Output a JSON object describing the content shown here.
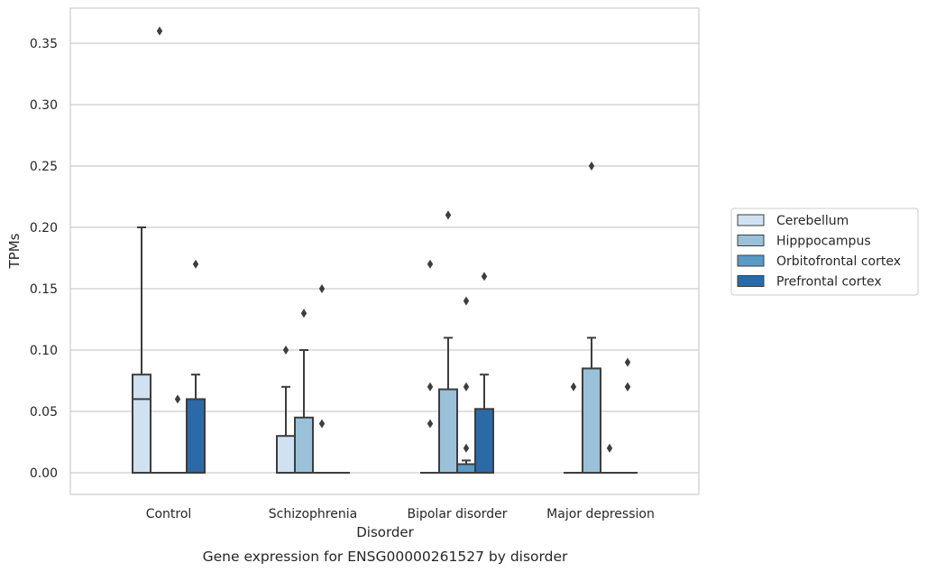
{
  "chart_data": {
    "type": "box",
    "xlabel": "Disorder",
    "ylabel": "TPMs",
    "caption": "Gene expression for ENSG00000261527 by disorder",
    "ylim": [
      -0.018,
      0.378
    ],
    "yticks": [
      "0.00",
      "0.05",
      "0.10",
      "0.15",
      "0.20",
      "0.25",
      "0.30",
      "0.35"
    ],
    "ytick_values": [
      0,
      0.05,
      0.1,
      0.15,
      0.2,
      0.25,
      0.3,
      0.35
    ],
    "grid": "horizontal",
    "legend_position": "right",
    "categories": [
      "Control",
      "Schizophrenia",
      "Bipolar disorder",
      "Major depression"
    ],
    "series": [
      {
        "name": "Cerebellum",
        "color": "#d0e1f2",
        "boxes": [
          {
            "q1": 0,
            "median": 0.06,
            "q3": 0.08,
            "whisker_low": 0,
            "whisker_high": 0.2,
            "outliers": []
          },
          {
            "q1": 0,
            "median": 0,
            "q3": 0.03,
            "whisker_low": 0,
            "whisker_high": 0.07,
            "outliers": [
              0.1
            ]
          },
          {
            "q1": 0,
            "median": 0,
            "q3": 0,
            "whisker_low": 0,
            "whisker_high": 0,
            "outliers": [
              0.04,
              0.07,
              0.17
            ]
          },
          {
            "q1": 0,
            "median": 0,
            "q3": 0,
            "whisker_low": 0,
            "whisker_high": 0,
            "outliers": [
              0.07
            ]
          }
        ]
      },
      {
        "name": "Hipppocampus",
        "color": "#9ac1d9",
        "boxes": [
          {
            "q1": 0,
            "median": 0,
            "q3": 0,
            "whisker_low": 0,
            "whisker_high": 0,
            "outliers": [
              0.36
            ]
          },
          {
            "q1": 0,
            "median": 0,
            "q3": 0.045,
            "whisker_low": 0,
            "whisker_high": 0.1,
            "outliers": [
              0.13
            ]
          },
          {
            "q1": 0,
            "median": 0,
            "q3": 0.068,
            "whisker_low": 0,
            "whisker_high": 0.11,
            "outliers": [
              0.21
            ]
          },
          {
            "q1": 0,
            "median": 0,
            "q3": 0.085,
            "whisker_low": 0,
            "whisker_high": 0.11,
            "outliers": [
              0.25
            ]
          }
        ]
      },
      {
        "name": "Orbitofrontal cortex",
        "color": "#5a9ac6",
        "boxes": [
          {
            "q1": 0,
            "median": 0,
            "q3": 0,
            "whisker_low": 0,
            "whisker_high": 0,
            "outliers": [
              0.06
            ]
          },
          {
            "q1": 0,
            "median": 0,
            "q3": 0,
            "whisker_low": 0,
            "whisker_high": 0,
            "outliers": [
              0.04,
              0.15
            ]
          },
          {
            "q1": 0,
            "median": 0,
            "q3": 0.007,
            "whisker_low": 0,
            "whisker_high": 0.01,
            "outliers": [
              0.02,
              0.07,
              0.14
            ]
          },
          {
            "q1": 0,
            "median": 0,
            "q3": 0,
            "whisker_low": 0,
            "whisker_high": 0,
            "outliers": [
              0.02
            ]
          }
        ]
      },
      {
        "name": "Prefrontal cortex",
        "color": "#2b6aa6",
        "boxes": [
          {
            "q1": 0,
            "median": 0,
            "q3": 0.06,
            "whisker_low": 0,
            "whisker_high": 0.08,
            "outliers": [
              0.17
            ]
          },
          {
            "q1": 0,
            "median": 0,
            "q3": 0,
            "whisker_low": 0,
            "whisker_high": 0,
            "outliers": []
          },
          {
            "q1": 0,
            "median": 0,
            "q3": 0.052,
            "whisker_low": 0,
            "whisker_high": 0.08,
            "outliers": [
              0.16
            ]
          },
          {
            "q1": 0,
            "median": 0,
            "q3": 0,
            "whisker_low": 0,
            "whisker_high": 0,
            "outliers": [
              0.07,
              0.07,
              0.09
            ]
          }
        ]
      }
    ]
  }
}
